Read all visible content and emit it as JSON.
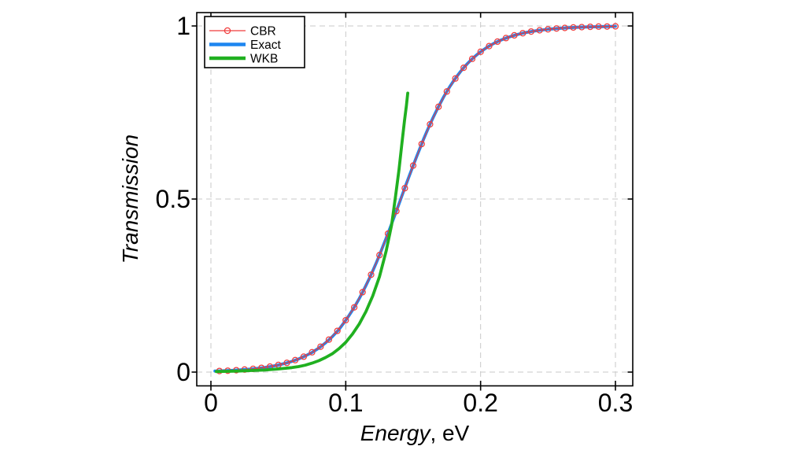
{
  "figure": {
    "background": "#ffffff",
    "ylabel": "Transmission",
    "xlabel_main": "Energy",
    "xlabel_unit": ", eV",
    "x_tick_labels": [
      "0",
      "0.1",
      "0.2",
      "0.3"
    ],
    "x_tick_values": [
      0,
      0.1,
      0.2,
      0.3
    ],
    "y_tick_labels": [
      "0",
      "0.5",
      "1"
    ],
    "y_tick_values": [
      0,
      0.5,
      1
    ],
    "grid_color": "#c9c9c9",
    "frame_color": "#000000",
    "text_color": "#000000",
    "legend": [
      {
        "label": "CBR",
        "color": "#f03c3c",
        "sample": "line-circle"
      },
      {
        "label": "Exact",
        "color": "#1e86f0",
        "sample": "line"
      },
      {
        "label": "WKB",
        "color": "#20b020",
        "sample": "line"
      }
    ]
  },
  "chart_data": {
    "type": "line",
    "title": "",
    "xlabel": "Energy, eV",
    "ylabel": "Transmission",
    "xlim": [
      -0.0105,
      0.313
    ],
    "ylim": [
      -0.04,
      1.039
    ],
    "x_ticks": [
      0,
      0.1,
      0.2,
      0.3
    ],
    "y_ticks": [
      0,
      0.5,
      1
    ],
    "grid": "dashed",
    "legend_position": "top-left",
    "series": [
      {
        "name": "CBR",
        "style": "thin-line-open-circles",
        "color": "#f03c3c",
        "x": [
          0.0063,
          0.0125,
          0.0188,
          0.025,
          0.0313,
          0.0375,
          0.0438,
          0.05,
          0.0563,
          0.0625,
          0.0688,
          0.075,
          0.0813,
          0.0875,
          0.0938,
          0.1,
          0.1063,
          0.1125,
          0.1188,
          0.125,
          0.1313,
          0.1375,
          0.1438,
          0.15,
          0.1563,
          0.1625,
          0.1688,
          0.175,
          0.1813,
          0.1875,
          0.1938,
          0.2,
          0.2063,
          0.2125,
          0.2188,
          0.225,
          0.2313,
          0.2375,
          0.2438,
          0.25,
          0.2563,
          0.2625,
          0.2688,
          0.275,
          0.2813,
          0.2875,
          0.2938,
          0.3
        ],
        "y": [
          0.0032,
          0.0042,
          0.0055,
          0.0072,
          0.0094,
          0.0122,
          0.0158,
          0.0206,
          0.0266,
          0.0345,
          0.0445,
          0.0573,
          0.0735,
          0.0938,
          0.119,
          0.1498,
          0.187,
          0.2308,
          0.2813,
          0.338,
          0.3999,
          0.4651,
          0.5314,
          0.5967,
          0.6588,
          0.7158,
          0.7666,
          0.8107,
          0.8482,
          0.8794,
          0.9049,
          0.9254,
          0.9418,
          0.9548,
          0.965,
          0.9729,
          0.9791,
          0.9839,
          0.9876,
          0.9905,
          0.9927,
          0.9944,
          0.9957,
          0.9967,
          0.9975,
          0.9981,
          0.9985,
          0.9989
        ]
      },
      {
        "name": "Exact",
        "style": "thick-line",
        "color": "#1e86f0",
        "x": [
          0.003,
          0.005,
          0.01,
          0.015,
          0.02,
          0.025,
          0.03,
          0.035,
          0.04,
          0.045,
          0.05,
          0.055,
          0.06,
          0.065,
          0.07,
          0.075,
          0.08,
          0.085,
          0.09,
          0.095,
          0.1,
          0.1025,
          0.105,
          0.1075,
          0.11,
          0.1125,
          0.115,
          0.1175,
          0.12,
          0.1225,
          0.125,
          0.1275,
          0.13,
          0.1325,
          0.135,
          0.1375,
          0.14,
          0.1425,
          0.145,
          0.1475,
          0.15,
          0.1525,
          0.155,
          0.1575,
          0.16,
          0.1625,
          0.165,
          0.1675,
          0.17,
          0.1725,
          0.175,
          0.1775,
          0.18,
          0.1825,
          0.185,
          0.1875,
          0.19,
          0.1925,
          0.195,
          0.1975,
          0.2,
          0.205,
          0.21,
          0.215,
          0.22,
          0.225,
          0.23,
          0.235,
          0.24,
          0.245,
          0.25,
          0.26,
          0.27,
          0.28,
          0.29,
          0.3
        ],
        "y": [
          0.0029,
          0.0031,
          0.0038,
          0.0047,
          0.0058,
          0.0072,
          0.0089,
          0.0109,
          0.0135,
          0.0166,
          0.0205,
          0.0252,
          0.0309,
          0.0379,
          0.0465,
          0.0568,
          0.0693,
          0.0843,
          0.1022,
          0.1234,
          0.1498,
          0.1639,
          0.179,
          0.1952,
          0.2124,
          0.2307,
          0.2502,
          0.2707,
          0.2921,
          0.3146,
          0.338,
          0.3622,
          0.3871,
          0.4127,
          0.4387,
          0.465,
          0.4916,
          0.5182,
          0.5447,
          0.5709,
          0.5967,
          0.622,
          0.6467,
          0.6707,
          0.6937,
          0.7158,
          0.737,
          0.757,
          0.776,
          0.794,
          0.8108,
          0.8266,
          0.8413,
          0.855,
          0.8677,
          0.8794,
          0.8902,
          0.9002,
          0.9094,
          0.9178,
          0.9254,
          0.9389,
          0.95,
          0.9591,
          0.9667,
          0.9729,
          0.978,
          0.9821,
          0.9855,
          0.9882,
          0.9905,
          0.9937,
          0.9959,
          0.9973,
          0.9982,
          0.9989
        ]
      },
      {
        "name": "WKB",
        "style": "thick-line",
        "color": "#20b020",
        "x": [
          0.004,
          0.01,
          0.02,
          0.03,
          0.04,
          0.05,
          0.06,
          0.065,
          0.07,
          0.075,
          0.08,
          0.085,
          0.09,
          0.095,
          0.1,
          0.105,
          0.11,
          0.115,
          0.12,
          0.125,
          0.13,
          0.134,
          0.137,
          0.1395,
          0.1415,
          0.1435,
          0.145,
          0.146
        ],
        "y": [
          0.0015,
          0.002,
          0.003,
          0.0045,
          0.006,
          0.009,
          0.013,
          0.016,
          0.02,
          0.026,
          0.033,
          0.042,
          0.053,
          0.068,
          0.086,
          0.11,
          0.139,
          0.175,
          0.22,
          0.276,
          0.35,
          0.425,
          0.51,
          0.585,
          0.655,
          0.725,
          0.77,
          0.806
        ]
      }
    ]
  }
}
